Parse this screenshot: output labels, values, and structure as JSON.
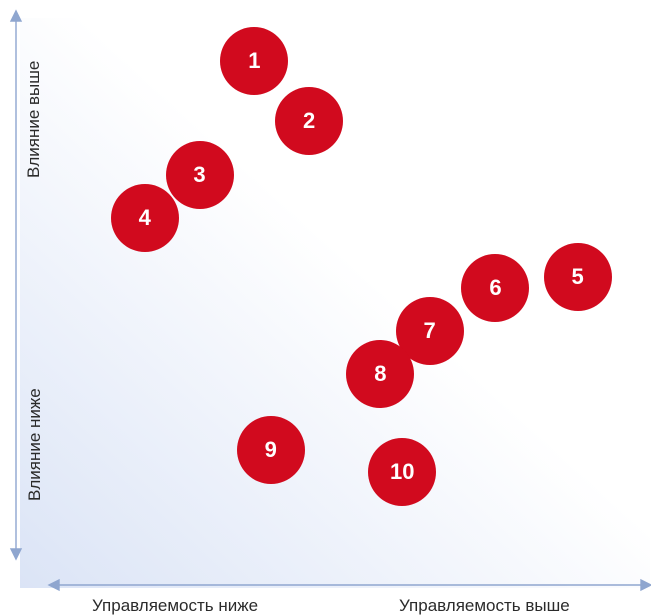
{
  "axes": {
    "y_high": "Влияние выше",
    "y_low": "Влияние ниже",
    "x_low": "Управляемость ниже",
    "x_high": "Управляемость выше"
  },
  "colors": {
    "marker": "#d10a1e",
    "marker_text": "#ffffff",
    "axis": "#8fa6cf",
    "gradient_corner": "#dbe4f6"
  },
  "markers": [
    {
      "label": "1",
      "controllability": 0.34,
      "influence": 0.92
    },
    {
      "label": "2",
      "controllability": 0.44,
      "influence": 0.81
    },
    {
      "label": "3",
      "controllability": 0.24,
      "influence": 0.71
    },
    {
      "label": "4",
      "controllability": 0.14,
      "influence": 0.63
    },
    {
      "label": "5",
      "controllability": 0.93,
      "influence": 0.52
    },
    {
      "label": "6",
      "controllability": 0.78,
      "influence": 0.5
    },
    {
      "label": "7",
      "controllability": 0.66,
      "influence": 0.42
    },
    {
      "label": "8",
      "controllability": 0.57,
      "influence": 0.34
    },
    {
      "label": "9",
      "controllability": 0.37,
      "influence": 0.2
    },
    {
      "label": "10",
      "controllability": 0.61,
      "influence": 0.16
    }
  ]
}
